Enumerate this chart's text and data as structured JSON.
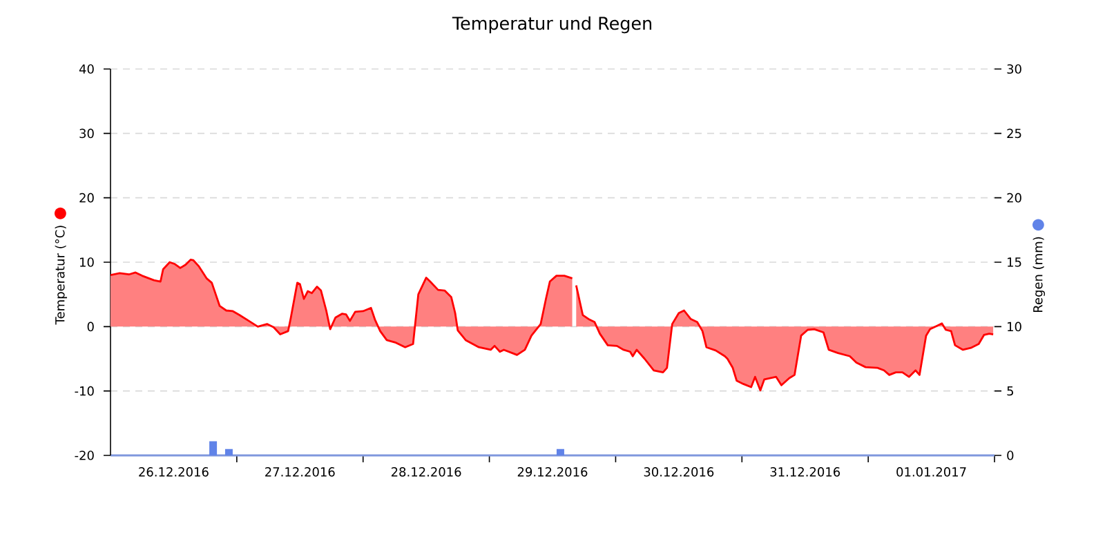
{
  "chart_data": {
    "type": "area",
    "title": "Temperatur und Regen",
    "ylabel": "Temperatur (°C)",
    "y2label": "Regen (mm)",
    "xlim": [
      "2016-12-26T00:00",
      "2017-01-02T00:00"
    ],
    "xticks": [
      {
        "value": "2016-12-26T12:00",
        "label": "26.12.2016"
      },
      {
        "value": "2016-12-27T00:00",
        "label": null
      },
      {
        "value": "2016-12-27T12:00",
        "label": "27.12.2016"
      },
      {
        "value": "2016-12-28T00:00",
        "label": null
      },
      {
        "value": "2016-12-28T12:00",
        "label": "28.12.2016"
      },
      {
        "value": "2016-12-29T00:00",
        "label": null
      },
      {
        "value": "2016-12-29T12:00",
        "label": "29.12.2016"
      },
      {
        "value": "2016-12-30T00:00",
        "label": null
      },
      {
        "value": "2016-12-30T12:00",
        "label": "30.12.2016"
      },
      {
        "value": "2016-12-31T00:00",
        "label": null
      },
      {
        "value": "2016-12-31T12:00",
        "label": "31.12.2016"
      },
      {
        "value": "2017-01-01T00:00",
        "label": null
      },
      {
        "value": "2017-01-01T12:00",
        "label": "01.01.2017"
      },
      {
        "value": "2017-01-02T00:00",
        "label": null
      }
    ],
    "ylim": [
      -20,
      40
    ],
    "yticks": [
      -20,
      -10,
      0,
      10,
      20,
      30,
      40
    ],
    "y2lim": [
      0,
      30
    ],
    "y2ticks": [
      0,
      5,
      10,
      15,
      20,
      25,
      30
    ],
    "grid": "y",
    "series": [
      {
        "color": "#ff0000",
        "x": [
          "2016-12-26T00:00",
          "2016-12-26T01:45",
          "2016-12-26T03:30",
          "2016-12-26T04:45",
          "2016-12-26T06:00",
          "2016-12-26T08:15",
          "2016-12-26T09:30",
          "2016-12-26T10:00",
          "2016-12-26T11:15",
          "2016-12-26T12:15",
          "2016-12-26T13:15",
          "2016-12-26T14:15",
          "2016-12-26T15:15",
          "2016-12-26T15:45",
          "2016-12-26T16:45",
          "2016-12-26T18:15",
          "2016-12-26T19:15",
          "2016-12-26T20:00",
          "2016-12-26T20:45",
          "2016-12-26T22:00",
          "2016-12-26T23:15",
          "2016-12-27T00:30",
          "2016-12-27T02:15",
          "2016-12-27T04:00",
          "2016-12-27T05:45",
          "2016-12-27T07:00",
          "2016-12-27T08:15",
          "2016-12-27T09:45",
          "2016-12-27T10:15",
          "2016-12-27T11:30",
          "2016-12-27T12:00",
          "2016-12-27T12:45",
          "2016-12-27T13:30",
          "2016-12-27T14:15",
          "2016-12-27T15:15",
          "2016-12-27T16:00",
          "2016-12-27T17:00",
          "2016-12-27T17:45",
          "2016-12-27T18:45",
          "2016-12-27T20:00",
          "2016-12-27T20:45",
          "2016-12-27T21:30",
          "2016-12-27T22:30",
          "2016-12-28T00:00",
          "2016-12-28T01:30",
          "2016-12-28T02:15",
          "2016-12-28T03:15",
          "2016-12-28T04:30",
          "2016-12-28T06:15",
          "2016-12-28T08:00",
          "2016-12-28T09:30",
          "2016-12-28T10:30",
          "2016-12-28T12:00",
          "2016-12-28T12:45",
          "2016-12-28T14:15",
          "2016-12-28T15:30",
          "2016-12-28T16:45",
          "2016-12-28T17:30",
          "2016-12-28T18:00",
          "2016-12-28T19:30",
          "2016-12-28T22:00",
          "2016-12-29T00:15",
          "2016-12-29T01:00",
          "2016-12-29T02:00",
          "2016-12-29T02:45",
          "2016-12-29T05:15",
          "2016-12-29T06:45",
          "2016-12-29T08:00",
          "2016-12-29T09:45",
          "2016-12-29T10:45",
          "2016-12-29T11:30",
          "2016-12-29T12:45",
          "2016-12-29T14:15",
          "2016-12-29T15:45",
          "2016-12-29T16:00",
          "2016-12-29T16:30",
          "2016-12-29T17:45",
          "2016-12-29T19:00",
          "2016-12-29T20:00",
          "2016-12-29T21:00",
          "2016-12-29T22:30",
          "2016-12-30T00:15",
          "2016-12-30T01:30",
          "2016-12-30T02:45",
          "2016-12-30T03:15",
          "2016-12-30T04:00",
          "2016-12-30T05:30",
          "2016-12-30T07:15",
          "2016-12-30T09:00",
          "2016-12-30T09:45",
          "2016-12-30T10:45",
          "2016-12-30T12:00",
          "2016-12-30T13:00",
          "2016-12-30T14:15",
          "2016-12-30T15:30",
          "2016-12-30T16:30",
          "2016-12-30T17:15",
          "2016-12-30T19:00",
          "2016-12-30T20:45",
          "2016-12-30T21:15",
          "2016-12-30T22:15",
          "2016-12-30T23:00",
          "2016-12-31T00:15",
          "2016-12-31T01:45",
          "2016-12-31T02:30",
          "2016-12-31T03:30",
          "2016-12-31T04:15",
          "2016-12-31T06:30",
          "2016-12-31T07:30",
          "2016-12-31T09:00",
          "2016-12-31T10:00",
          "2016-12-31T11:15",
          "2016-12-31T12:30",
          "2016-12-31T13:45",
          "2016-12-31T15:30",
          "2016-12-31T16:30",
          "2016-12-31T18:15",
          "2016-12-31T20:30",
          "2016-12-31T21:45",
          "2016-12-31T23:30",
          "2017-01-01T01:45",
          "2017-01-01T03:00",
          "2017-01-01T04:00",
          "2017-01-01T05:15",
          "2017-01-01T06:30",
          "2017-01-01T07:45",
          "2017-01-01T09:00",
          "2017-01-01T09:45",
          "2017-01-01T11:00",
          "2017-01-01T11:45",
          "2017-01-01T13:00",
          "2017-01-01T14:00",
          "2017-01-01T14:45",
          "2017-01-01T15:45",
          "2017-01-01T16:30",
          "2017-01-01T18:00",
          "2017-01-01T19:30",
          "2017-01-01T21:00",
          "2017-01-01T22:00",
          "2017-01-01T23:00",
          "2017-01-01T23:45"
        ],
        "values": [
          8.0,
          8.3,
          8.1,
          8.4,
          7.9,
          7.2,
          7.0,
          8.9,
          10.0,
          9.7,
          9.1,
          9.6,
          10.4,
          10.3,
          9.4,
          7.5,
          6.8,
          5.0,
          3.2,
          2.5,
          2.4,
          1.8,
          0.9,
          0.0,
          0.4,
          -0.1,
          -1.2,
          -0.7,
          1.3,
          6.8,
          6.6,
          4.3,
          5.5,
          5.2,
          6.2,
          5.6,
          2.5,
          -0.4,
          1.4,
          2.0,
          1.9,
          0.9,
          2.3,
          2.4,
          2.9,
          1.1,
          -0.7,
          -2.1,
          -2.5,
          -3.2,
          -2.7,
          5.0,
          7.6,
          7.0,
          5.7,
          5.6,
          4.6,
          2.1,
          -0.6,
          -2.1,
          -3.2,
          -3.6,
          -3.0,
          -3.9,
          -3.6,
          -4.4,
          -3.6,
          -1.4,
          0.4,
          4.3,
          7.0,
          7.9,
          7.9,
          7.5,
          null,
          6.4,
          1.8,
          1.1,
          0.7,
          -1.1,
          -2.9,
          -3.0,
          -3.6,
          -3.9,
          -4.6,
          -3.6,
          -5.0,
          -6.8,
          -7.1,
          -6.4,
          0.4,
          2.1,
          2.5,
          1.2,
          0.7,
          -0.7,
          -3.2,
          -3.7,
          -4.6,
          -5.0,
          -6.4,
          -8.4,
          -8.9,
          -9.4,
          -7.8,
          -9.9,
          -8.2,
          -7.8,
          -9.1,
          -8.0,
          -7.5,
          -1.4,
          -0.5,
          -0.4,
          -0.9,
          -3.6,
          -4.1,
          -4.6,
          -5.6,
          -6.3,
          -6.4,
          -6.8,
          -7.5,
          -7.1,
          -7.1,
          -7.8,
          -6.8,
          -7.5,
          -1.4,
          -0.4,
          0.1,
          0.5,
          -0.5,
          -0.7,
          -2.9,
          -3.6,
          -3.3,
          -2.7,
          -1.3,
          -1.1,
          -1.2
        ]
      },
      {
        "type": "bar",
        "axis": "y2",
        "color": "#6083e8",
        "x": [
          "2016-12-26T19:30",
          "2016-12-26T22:30",
          "2016-12-29T13:30"
        ],
        "values": [
          1.1,
          0.5,
          0.5
        ]
      }
    ]
  }
}
